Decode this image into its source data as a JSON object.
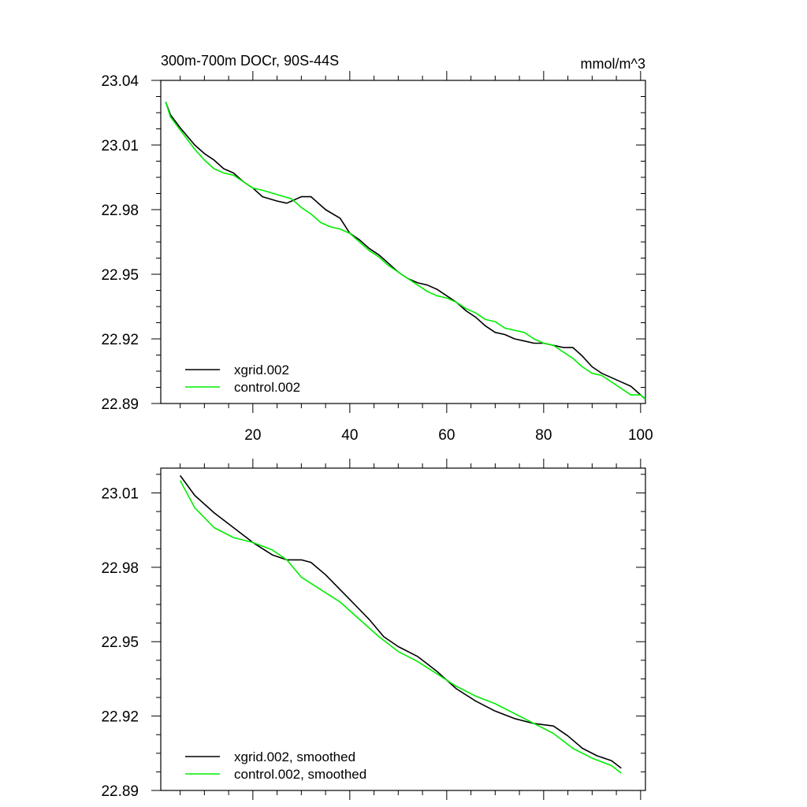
{
  "chart_data": [
    {
      "type": "line",
      "title": "300m-700m DOCr, 90S-44S",
      "units": "mmol/m^3",
      "xlim": [
        1,
        101
      ],
      "ylim": [
        22.89,
        23.04
      ],
      "x_ticks": [
        20,
        40,
        60,
        80,
        100
      ],
      "x_tick_labels": [
        "20",
        "40",
        "60",
        "80",
        "100"
      ],
      "y_ticks": [
        22.89,
        22.92,
        22.95,
        22.98,
        23.01,
        23.04
      ],
      "y_tick_labels": [
        "22.89",
        "22.92",
        "22.95",
        "22.98",
        "23.01",
        "23.04"
      ],
      "legend_position": "bottom-left",
      "series": [
        {
          "name": "xgrid.002",
          "color": "#000000",
          "points": [
            [
              2,
              23.03
            ],
            [
              3,
              23.024
            ],
            [
              5,
              23.018
            ],
            [
              8,
              23.01
            ],
            [
              10,
              23.006
            ],
            [
              12,
              23.003
            ],
            [
              14,
              22.999
            ],
            [
              16,
              22.997
            ],
            [
              18,
              22.993
            ],
            [
              20,
              22.99
            ],
            [
              22,
              22.986
            ],
            [
              25,
              22.984
            ],
            [
              27,
              22.983
            ],
            [
              28,
              22.984
            ],
            [
              30,
              22.986
            ],
            [
              32,
              22.986
            ],
            [
              35,
              22.98
            ],
            [
              38,
              22.976
            ],
            [
              40,
              22.969
            ],
            [
              42,
              22.966
            ],
            [
              44,
              22.962
            ],
            [
              46,
              22.959
            ],
            [
              48,
              22.955
            ],
            [
              50,
              22.951
            ],
            [
              52,
              22.948
            ],
            [
              54,
              22.946
            ],
            [
              56,
              22.945
            ],
            [
              58,
              22.943
            ],
            [
              60,
              22.94
            ],
            [
              62,
              22.937
            ],
            [
              64,
              22.933
            ],
            [
              66,
              22.93
            ],
            [
              68,
              22.926
            ],
            [
              70,
              22.923
            ],
            [
              72,
              22.922
            ],
            [
              74,
              22.92
            ],
            [
              76,
              22.919
            ],
            [
              78,
              22.918
            ],
            [
              80,
              22.918
            ],
            [
              82,
              22.917
            ],
            [
              84,
              22.916
            ],
            [
              86,
              22.916
            ],
            [
              88,
              22.912
            ],
            [
              90,
              22.907
            ],
            [
              92,
              22.904
            ],
            [
              94,
              22.902
            ],
            [
              96,
              22.9
            ],
            [
              98,
              22.898
            ],
            [
              100,
              22.894
            ],
            [
              101,
              22.892
            ]
          ]
        },
        {
          "name": "control.002",
          "color": "#00ee00",
          "points": [
            [
              2,
              23.03
            ],
            [
              3,
              23.023
            ],
            [
              5,
              23.017
            ],
            [
              8,
              23.008
            ],
            [
              10,
              23.003
            ],
            [
              12,
              22.999
            ],
            [
              14,
              22.997
            ],
            [
              16,
              22.996
            ],
            [
              18,
              22.993
            ],
            [
              20,
              22.99
            ],
            [
              22,
              22.989
            ],
            [
              25,
              22.987
            ],
            [
              28,
              22.985
            ],
            [
              30,
              22.981
            ],
            [
              32,
              22.978
            ],
            [
              34,
              22.974
            ],
            [
              36,
              22.972
            ],
            [
              38,
              22.971
            ],
            [
              40,
              22.969
            ],
            [
              42,
              22.965
            ],
            [
              44,
              22.961
            ],
            [
              46,
              22.958
            ],
            [
              48,
              22.954
            ],
            [
              50,
              22.951
            ],
            [
              52,
              22.948
            ],
            [
              54,
              22.945
            ],
            [
              56,
              22.942
            ],
            [
              58,
              22.94
            ],
            [
              60,
              22.939
            ],
            [
              62,
              22.937
            ],
            [
              64,
              22.934
            ],
            [
              66,
              22.932
            ],
            [
              68,
              22.929
            ],
            [
              70,
              22.928
            ],
            [
              72,
              22.925
            ],
            [
              74,
              22.924
            ],
            [
              76,
              22.923
            ],
            [
              78,
              22.92
            ],
            [
              80,
              22.918
            ],
            [
              82,
              22.917
            ],
            [
              84,
              22.914
            ],
            [
              86,
              22.911
            ],
            [
              88,
              22.907
            ],
            [
              90,
              22.904
            ],
            [
              92,
              22.903
            ],
            [
              94,
              22.9
            ],
            [
              96,
              22.897
            ],
            [
              98,
              22.894
            ],
            [
              100,
              22.894
            ],
            [
              101,
              22.892
            ]
          ]
        }
      ]
    },
    {
      "type": "line",
      "xlim": [
        1,
        101
      ],
      "ylim": [
        22.89,
        23.02
      ],
      "x_ticks": [
        20,
        40,
        60,
        80,
        100
      ],
      "y_ticks": [
        22.89,
        22.92,
        22.95,
        22.98,
        23.01
      ],
      "y_tick_labels": [
        "22.89",
        "22.92",
        "22.95",
        "22.98",
        "23.01"
      ],
      "legend_position": "bottom-left",
      "series": [
        {
          "name": "xgrid.002, smoothed",
          "color": "#000000",
          "points": [
            [
              5,
              23.017
            ],
            [
              8,
              23.009
            ],
            [
              12,
              23.002
            ],
            [
              16,
              22.996
            ],
            [
              20,
              22.99
            ],
            [
              24,
              22.985
            ],
            [
              27,
              22.983
            ],
            [
              30,
              22.983
            ],
            [
              32,
              22.982
            ],
            [
              35,
              22.977
            ],
            [
              38,
              22.971
            ],
            [
              41,
              22.965
            ],
            [
              44,
              22.959
            ],
            [
              47,
              22.952
            ],
            [
              50,
              22.948
            ],
            [
              54,
              22.944
            ],
            [
              56,
              22.941
            ],
            [
              58,
              22.938
            ],
            [
              62,
              22.931
            ],
            [
              66,
              22.926
            ],
            [
              70,
              22.922
            ],
            [
              74,
              22.919
            ],
            [
              78,
              22.917
            ],
            [
              82,
              22.916
            ],
            [
              85,
              22.912
            ],
            [
              88,
              22.907
            ],
            [
              91,
              22.904
            ],
            [
              94,
              22.902
            ],
            [
              96,
              22.899
            ]
          ]
        },
        {
          "name": "control.002, smoothed",
          "color": "#00ee00",
          "points": [
            [
              5,
              23.015
            ],
            [
              8,
              23.004
            ],
            [
              12,
              22.996
            ],
            [
              16,
              22.992
            ],
            [
              20,
              22.99
            ],
            [
              24,
              22.987
            ],
            [
              27,
              22.983
            ],
            [
              30,
              22.976
            ],
            [
              34,
              22.971
            ],
            [
              38,
              22.966
            ],
            [
              42,
              22.959
            ],
            [
              46,
              22.952
            ],
            [
              50,
              22.946
            ],
            [
              54,
              22.942
            ],
            [
              58,
              22.937
            ],
            [
              62,
              22.932
            ],
            [
              66,
              22.928
            ],
            [
              70,
              22.925
            ],
            [
              74,
              22.921
            ],
            [
              78,
              22.917
            ],
            [
              82,
              22.913
            ],
            [
              86,
              22.907
            ],
            [
              90,
              22.903
            ],
            [
              94,
              22.9
            ],
            [
              96,
              22.897
            ]
          ]
        }
      ]
    }
  ]
}
